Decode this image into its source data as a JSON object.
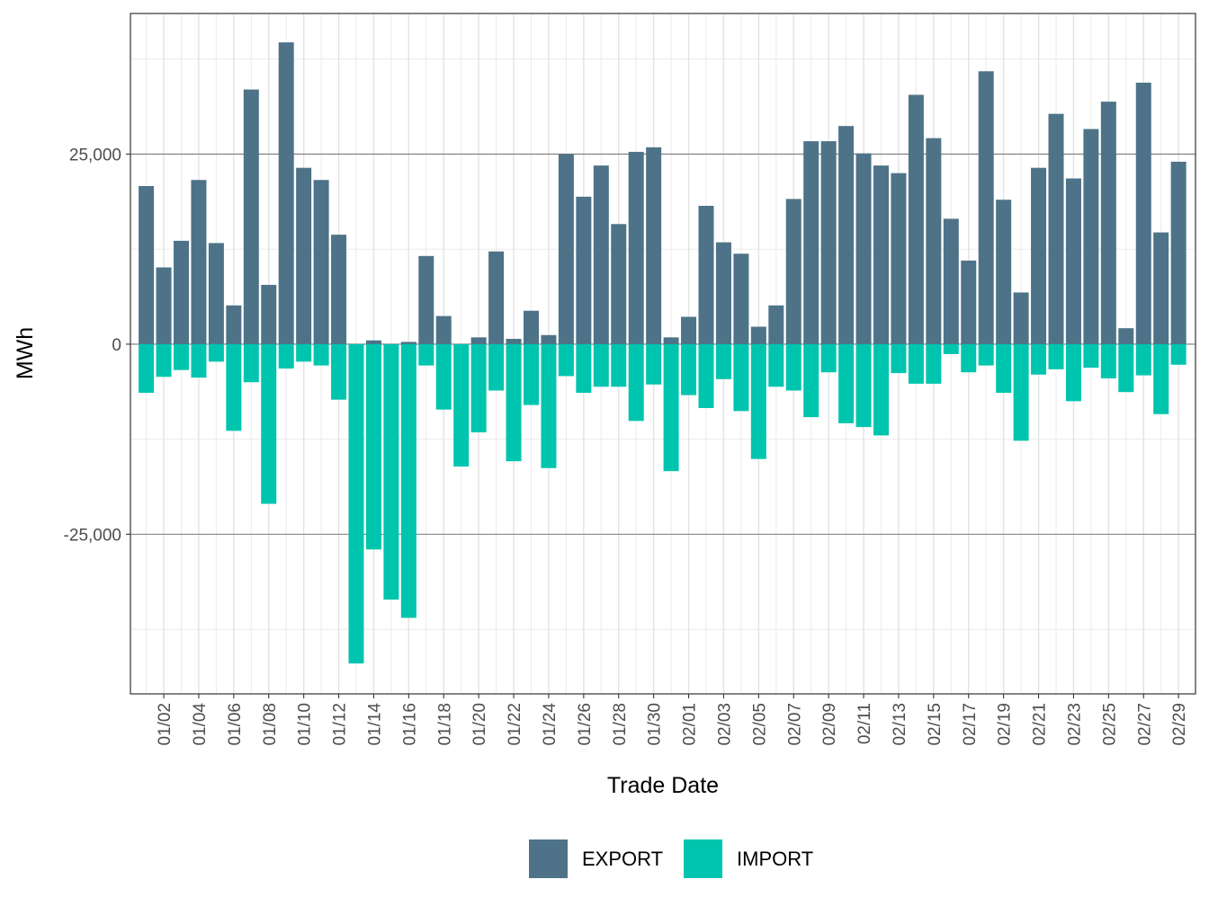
{
  "chart_data": {
    "type": "bar",
    "stacking": "diverging",
    "xlabel": "Trade Date",
    "ylabel": "MWh",
    "ylim": [
      -46000,
      43500
    ],
    "grid": true,
    "legend_position": "bottom",
    "x_tick_labels": [
      "01/02",
      "01/04",
      "01/06",
      "01/08",
      "01/10",
      "01/12",
      "01/14",
      "01/16",
      "01/18",
      "01/20",
      "01/22",
      "01/24",
      "01/26",
      "01/28",
      "01/30",
      "02/01",
      "02/03",
      "02/05",
      "02/07",
      "02/09",
      "02/11",
      "02/13",
      "02/15",
      "02/17",
      "02/19",
      "02/21",
      "02/23",
      "02/25",
      "02/27",
      "02/29"
    ],
    "y_ticks": [
      -25000,
      0,
      25000
    ],
    "y_tick_labels": [
      "-25,000",
      "0",
      "25,000"
    ],
    "categories": [
      "01/01",
      "01/02",
      "01/03",
      "01/04",
      "01/05",
      "01/06",
      "01/07",
      "01/08",
      "01/09",
      "01/10",
      "01/11",
      "01/12",
      "01/13",
      "01/14",
      "01/15",
      "01/16",
      "01/17",
      "01/18",
      "01/19",
      "01/20",
      "01/21",
      "01/22",
      "01/23",
      "01/24",
      "01/25",
      "01/26",
      "01/27",
      "01/28",
      "01/29",
      "01/30",
      "01/31",
      "02/01",
      "02/02",
      "02/03",
      "02/04",
      "02/05",
      "02/06",
      "02/07",
      "02/08",
      "02/09",
      "02/10",
      "02/11",
      "02/12",
      "02/13",
      "02/14",
      "02/15",
      "02/16",
      "02/17",
      "02/18",
      "02/19",
      "02/20",
      "02/21",
      "02/22",
      "02/23",
      "02/24",
      "02/25",
      "02/26",
      "02/27",
      "02/28",
      "02/29"
    ],
    "series": [
      {
        "name": "EXPORT",
        "color": "#4e7388",
        "values": [
          20800,
          10100,
          13600,
          21600,
          13300,
          5100,
          33500,
          7800,
          39700,
          23200,
          21600,
          14400,
          0,
          500,
          0,
          300,
          11600,
          3700,
          0,
          900,
          12200,
          700,
          4400,
          1200,
          25000,
          19400,
          23500,
          15800,
          25300,
          25900,
          900,
          3600,
          18200,
          13400,
          11900,
          2300,
          5100,
          19100,
          26700,
          26700,
          28700,
          25100,
          23500,
          22500,
          32800,
          27100,
          16500,
          11000,
          35900,
          19000,
          6800,
          23200,
          30300,
          21800,
          28300,
          31900,
          2100,
          34400,
          14700,
          24000
        ]
      },
      {
        "name": "IMPORT",
        "color": "#00c5ae",
        "values": [
          -6400,
          -4300,
          -3400,
          -4400,
          -2300,
          -11400,
          -5000,
          -21000,
          -3200,
          -2300,
          -2800,
          -7300,
          -42000,
          -27000,
          -33600,
          -36000,
          -2800,
          -8600,
          -16100,
          -11600,
          -6100,
          -15400,
          -8000,
          -16300,
          -4200,
          -6400,
          -5600,
          -5600,
          -10100,
          -5300,
          -16700,
          -6700,
          -8400,
          -4600,
          -8800,
          -15100,
          -5600,
          -6100,
          -9600,
          -3700,
          -10400,
          -10900,
          -12000,
          -3800,
          -5200,
          -5200,
          -1300,
          -3700,
          -2800,
          -6400,
          -12700,
          -4000,
          -3300,
          -7500,
          -3100,
          -4500,
          -6300,
          -4100,
          -9200,
          -2700
        ]
      }
    ]
  }
}
